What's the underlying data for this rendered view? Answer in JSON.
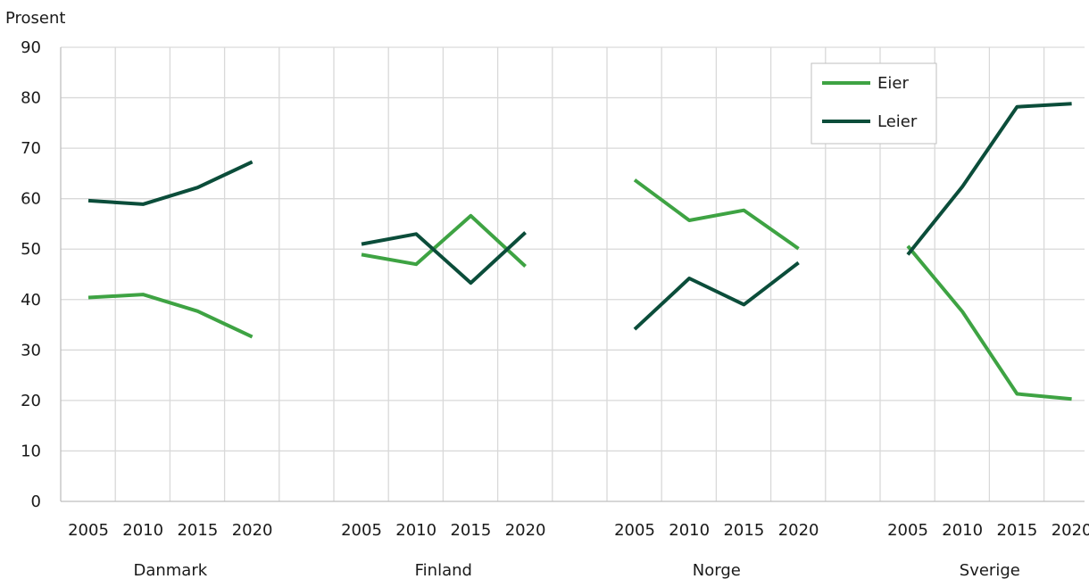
{
  "chart_data": {
    "type": "line",
    "ylabel": "Prosent",
    "ylim": [
      0,
      90
    ],
    "yticks": [
      0,
      10,
      20,
      30,
      40,
      50,
      60,
      70,
      80,
      90
    ],
    "grid": true,
    "legend_position": "top-right",
    "groups": [
      {
        "name": "Danmark",
        "x": [
          "2005",
          "2010",
          "2015",
          "2020"
        ],
        "series": [
          {
            "name": "Eier",
            "values": [
              40.4,
              41.0,
              37.7,
              32.6
            ]
          },
          {
            "name": "Leier",
            "values": [
              59.6,
              58.9,
              62.2,
              67.3
            ]
          }
        ]
      },
      {
        "name": "Finland",
        "x": [
          "2005",
          "2010",
          "2015",
          "2020"
        ],
        "series": [
          {
            "name": "Eier",
            "values": [
              48.9,
              47.0,
              56.6,
              46.6
            ]
          },
          {
            "name": "Leier",
            "values": [
              51.0,
              53.0,
              43.3,
              53.3
            ]
          }
        ]
      },
      {
        "name": "Norge",
        "x": [
          "2005",
          "2010",
          "2015",
          "2020"
        ],
        "series": [
          {
            "name": "Eier",
            "values": [
              63.7,
              55.7,
              57.7,
              50.1
            ]
          },
          {
            "name": "Leier",
            "values": [
              34.1,
              44.2,
              39.0,
              47.3
            ]
          }
        ]
      },
      {
        "name": "Sverige",
        "x": [
          "2005",
          "2010",
          "2015",
          "2020"
        ],
        "series": [
          {
            "name": "Eier",
            "values": [
              50.6,
              37.6,
              21.3,
              20.3
            ]
          },
          {
            "name": "Leier",
            "values": [
              48.9,
              62.4,
              78.2,
              78.8
            ]
          }
        ]
      }
    ],
    "legend": [
      {
        "name": "Eier",
        "color": "#3ea343"
      },
      {
        "name": "Leier",
        "color": "#0b4d3a"
      }
    ],
    "colors": {
      "Eier": "#3ea343",
      "Leier": "#0b4d3a",
      "grid": "#d9d9d9",
      "axis": "#bfbfbf"
    }
  }
}
